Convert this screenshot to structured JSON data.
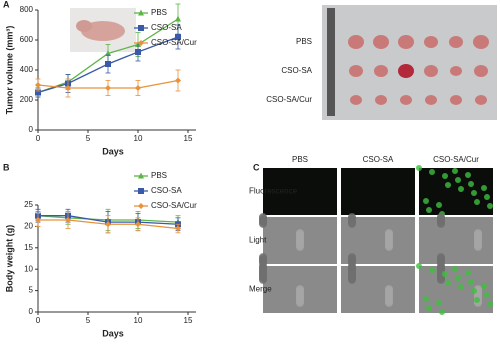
{
  "chart_data": [
    {
      "type": "line",
      "panel": "A",
      "xlabel": "Days",
      "ylabel": "Tumor volume (mm³)",
      "x": [
        0,
        3,
        7,
        10,
        14
      ],
      "xlim": [
        0,
        15
      ],
      "xticks": [
        0,
        5,
        10,
        15
      ],
      "ylim": [
        0,
        800
      ],
      "yticks": [
        0,
        200,
        400,
        600,
        800
      ],
      "legend": "upper center",
      "series": [
        {
          "name": "PBS",
          "color": "#5cb546",
          "marker": "triangle",
          "values": [
            250,
            320,
            510,
            570,
            740
          ],
          "errors": [
            30,
            50,
            60,
            80,
            100
          ]
        },
        {
          "name": "CSO-SA",
          "color": "#3a5aa8",
          "marker": "square",
          "values": [
            250,
            310,
            440,
            520,
            620
          ],
          "errors": [
            30,
            60,
            60,
            60,
            80
          ]
        },
        {
          "name": "CSO-SA/Cur",
          "color": "#e8923a",
          "marker": "diamond",
          "values": [
            300,
            280,
            280,
            280,
            330
          ],
          "errors": [
            40,
            60,
            50,
            50,
            70
          ]
        }
      ]
    },
    {
      "type": "line",
      "panel": "B",
      "xlabel": "Days",
      "ylabel": "Body weight (g)",
      "x": [
        0,
        3,
        7,
        10,
        14
      ],
      "xlim": [
        0,
        15
      ],
      "xticks": [
        0,
        5,
        10,
        15
      ],
      "ylim": [
        0,
        25
      ],
      "yticks": [
        0,
        5,
        10,
        15,
        20,
        25
      ],
      "legend": "upper center",
      "series": [
        {
          "name": "PBS",
          "color": "#5cb546",
          "marker": "triangle",
          "values": [
            22.5,
            22,
            21.5,
            21.5,
            21
          ],
          "errors": [
            1,
            1.5,
            2.5,
            2,
            1.5
          ]
        },
        {
          "name": "CSO-SA",
          "color": "#3a5aa8",
          "marker": "square",
          "values": [
            22.5,
            22.5,
            21,
            21,
            20.5
          ],
          "errors": [
            1.5,
            1.5,
            2.5,
            2,
            1.5
          ]
        },
        {
          "name": "CSO-SA/Cur",
          "color": "#e8923a",
          "marker": "diamond",
          "values": [
            21.5,
            21.5,
            20.5,
            20.5,
            19.5
          ],
          "errors": [
            1.5,
            2,
            2,
            1.5,
            1
          ]
        }
      ]
    }
  ],
  "tumor_photo": {
    "rows": [
      "PBS",
      "CSO-SA",
      "CSO-SA/Cur"
    ]
  },
  "imaging": {
    "panel": "C",
    "columns": [
      "PBS",
      "CSO-SA",
      "CSO-SA/Cur"
    ],
    "rows": [
      "Fluorescence",
      "Light",
      "Merge"
    ]
  }
}
